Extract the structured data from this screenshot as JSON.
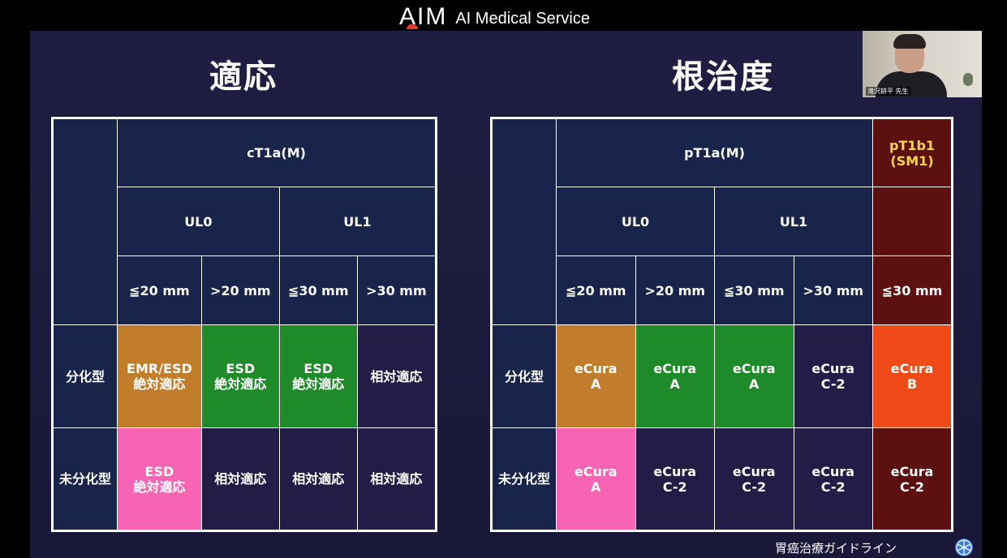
{
  "header": {
    "logo_mark": "AIM",
    "logo_text": "AI Medical Service"
  },
  "webcam": {
    "name_label": "滝沢耕平 先生"
  },
  "left": {
    "title": "適応",
    "header_main": "cT1a(M)",
    "header_ul0": "UL0",
    "header_ul1": "UL1",
    "sizes": [
      "≦20 mm",
      ">20 mm",
      "≦30 mm",
      ">30 mm"
    ],
    "rows": [
      {
        "label": "分化型",
        "cells": [
          {
            "line1": "EMR/ESD",
            "line2": "絶対適応",
            "color": "#c17d2c"
          },
          {
            "line1": "ESD",
            "line2": "絶対適応",
            "color": "#1f8a2a"
          },
          {
            "line1": "ESD",
            "line2": "絶対適応",
            "color": "#1f8a2a"
          },
          {
            "line1": "相対適応",
            "line2": "",
            "color": "#231c47"
          }
        ]
      },
      {
        "label": "未分化型",
        "cells": [
          {
            "line1": "ESD",
            "line2": "絶対適応",
            "color": "#f764b4"
          },
          {
            "line1": "相対適応",
            "line2": "",
            "color": "#231c47"
          },
          {
            "line1": "相対適応",
            "line2": "",
            "color": "#231c47"
          },
          {
            "line1": "相対適応",
            "line2": "",
            "color": "#231c47"
          }
        ]
      }
    ]
  },
  "right": {
    "title": "根治度",
    "header_main": "pT1a(M)",
    "header_sm_line1": "pT1b1",
    "header_sm_line2": "(SM1)",
    "header_ul0": "UL0",
    "header_ul1": "UL1",
    "sizes": [
      "≦20 mm",
      ">20 mm",
      "≦30 mm",
      ">30 mm",
      "≦30 mm"
    ],
    "rows": [
      {
        "label": "分化型",
        "cells": [
          {
            "line1": "eCura",
            "line2": "A",
            "color": "#c17d2c"
          },
          {
            "line1": "eCura",
            "line2": "A",
            "color": "#1f8a2a"
          },
          {
            "line1": "eCura",
            "line2": "A",
            "color": "#1f8a2a"
          },
          {
            "line1": "eCura",
            "line2": "C-2",
            "color": "#231c47"
          },
          {
            "line1": "eCura",
            "line2": "B",
            "color": "#f04a18"
          }
        ]
      },
      {
        "label": "未分化型",
        "cells": [
          {
            "line1": "eCura",
            "line2": "A",
            "color": "#f764b4"
          },
          {
            "line1": "eCura",
            "line2": "C-2",
            "color": "#231c47"
          },
          {
            "line1": "eCura",
            "line2": "C-2",
            "color": "#231c47"
          },
          {
            "line1": "eCura",
            "line2": "C-2",
            "color": "#231c47"
          },
          {
            "line1": "eCura",
            "line2": "C-2",
            "color": "#5c1010"
          }
        ]
      }
    ]
  },
  "footer": {
    "text": "胃癌治療ガイドライン",
    "icon": "guideline-emblem-icon"
  }
}
